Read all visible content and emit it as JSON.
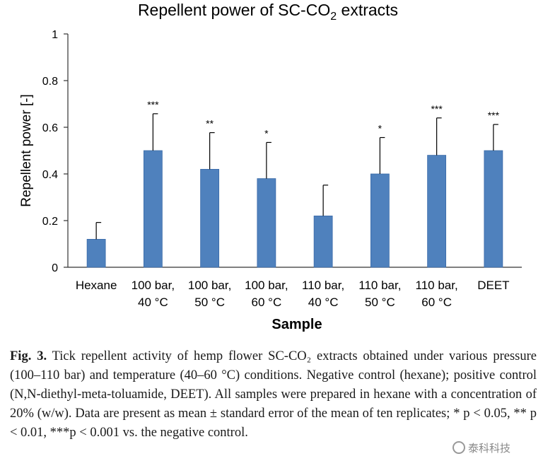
{
  "chart_data": {
    "type": "bar",
    "title": "Repellent power of SC-CO",
    "title_sub": "2",
    "title_tail": " extracts",
    "xlabel": "Sample",
    "ylabel": "Repellent  power  [-]",
    "ylim": [
      0,
      1
    ],
    "yticks": [
      "0",
      "0.2",
      "0.4",
      "0.6",
      "0.8",
      "1"
    ],
    "categories": [
      [
        "Hexane",
        ""
      ],
      [
        "100 bar,",
        "40 °C"
      ],
      [
        "100 bar,",
        "50 °C"
      ],
      [
        "100 bar,",
        "60 °C"
      ],
      [
        "110 bar,",
        "40 °C"
      ],
      [
        "110 bar,",
        "50 °C"
      ],
      [
        "110 bar,",
        "60 °C"
      ],
      [
        "DEET",
        ""
      ]
    ],
    "values": [
      0.12,
      0.5,
      0.42,
      0.38,
      0.22,
      0.4,
      0.48,
      0.5
    ],
    "errors": [
      0.072,
      0.158,
      0.157,
      0.155,
      0.132,
      0.156,
      0.16,
      0.112
    ],
    "significance": [
      "",
      "***",
      "**",
      "*",
      "",
      "*",
      "***",
      "***"
    ],
    "bar_color": "#4f81bd",
    "bar_edge_color": "#3a6aa8",
    "grid": false
  },
  "caption": {
    "fig_label": "Fig. 3.",
    "text": " Tick repellent activity of hemp flower SC-CO₂ extracts obtained under various pressure (100–110 bar) and temperature (40–60 °C) conditions. Negative control (hexane); positive control (N,N-diethyl-meta-toluamide, DEET). All samples were prepared in hexane with a concentration of 20% (w/w). Data are present as mean ± standard error of the mean of ten replicates; * p < 0.05, ** p < 0.01, ***p < 0.001 vs. the negative control."
  },
  "watermark": {
    "text": "泰科科技",
    "icon": "wechat-icon"
  }
}
